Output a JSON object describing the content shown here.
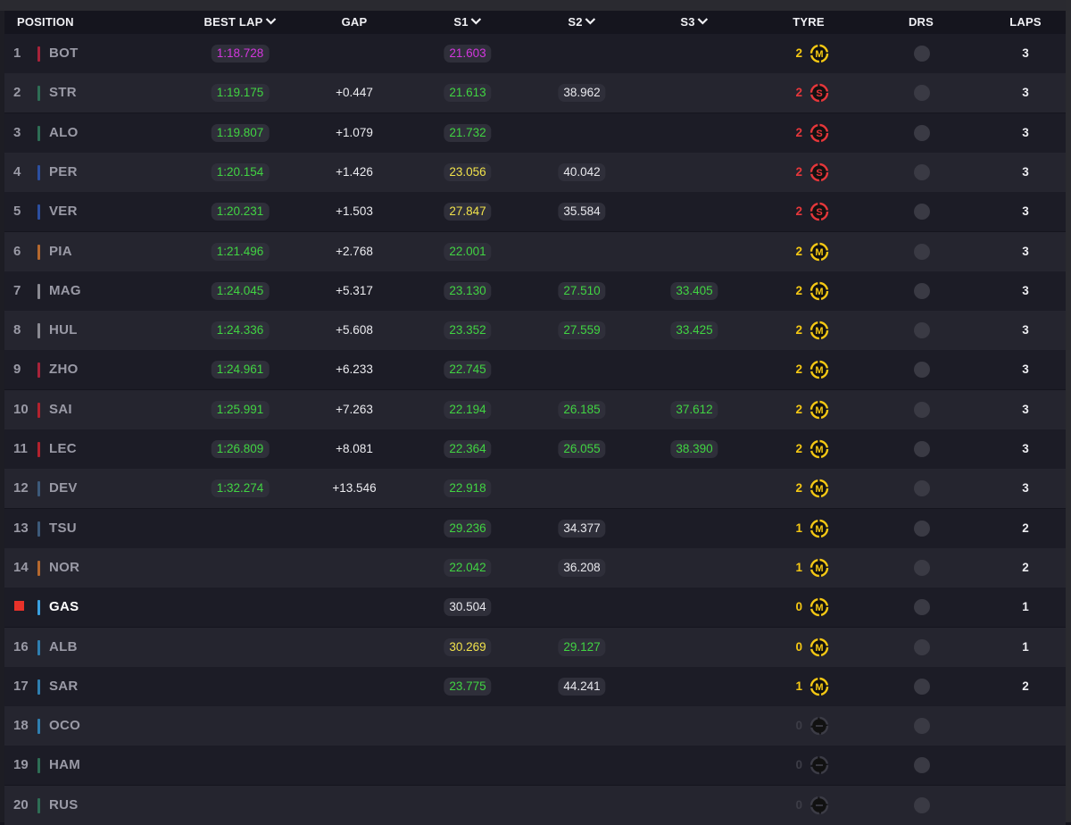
{
  "header": {
    "position": "POSITION",
    "best_lap": "BEST LAP",
    "gap": "GAP",
    "s1": "S1",
    "s2": "S2",
    "s3": "S3",
    "tyre": "TYRE",
    "drs": "DRS",
    "laps": "LAPS"
  },
  "colors": {
    "fastest_overall": "#d337de",
    "personal_best": "#41d442",
    "slower_sector": "#f1e24b",
    "medium_tyre": "#f5c814",
    "soft_tyre": "#e6373b"
  },
  "rows": [
    {
      "pos": "1",
      "driver": "BOT",
      "team_color": "#a8233a",
      "best_lap": "1:18.728",
      "best_lap_style": "purple",
      "gap": "",
      "s1": "21.603",
      "s1_style": "purple",
      "s2": "",
      "s2_style": "",
      "s3": "",
      "s3_style": "",
      "tyre_count": "2",
      "tyre": "medium-tyre-icon",
      "tyre_letter": "M",
      "laps": "3"
    },
    {
      "pos": "2",
      "driver": "STR",
      "team_color": "#2e6e55",
      "best_lap": "1:19.175",
      "best_lap_style": "green",
      "gap": "+0.447",
      "s1": "21.613",
      "s1_style": "green",
      "s2": "38.962",
      "s2_style": "white",
      "s3": "",
      "s3_style": "",
      "tyre_count": "2",
      "tyre": "soft-tyre-icon",
      "tyre_letter": "S",
      "laps": "3"
    },
    {
      "pos": "3",
      "driver": "ALO",
      "team_color": "#2e6e55",
      "best_lap": "1:19.807",
      "best_lap_style": "green",
      "gap": "+1.079",
      "s1": "21.732",
      "s1_style": "green",
      "s2": "",
      "s2_style": "",
      "s3": "",
      "s3_style": "",
      "tyre_count": "2",
      "tyre": "soft-tyre-icon",
      "tyre_letter": "S",
      "laps": "3"
    },
    {
      "pos": "4",
      "driver": "PER",
      "team_color": "#2c4fa0",
      "best_lap": "1:20.154",
      "best_lap_style": "green",
      "gap": "+1.426",
      "s1": "23.056",
      "s1_style": "yellow",
      "s2": "40.042",
      "s2_style": "white",
      "s3": "",
      "s3_style": "",
      "tyre_count": "2",
      "tyre": "soft-tyre-icon",
      "tyre_letter": "S",
      "laps": "3"
    },
    {
      "pos": "5",
      "driver": "VER",
      "team_color": "#2c4fa0",
      "best_lap": "1:20.231",
      "best_lap_style": "green",
      "gap": "+1.503",
      "s1": "27.847",
      "s1_style": "yellow",
      "s2": "35.584",
      "s2_style": "white",
      "s3": "",
      "s3_style": "",
      "tyre_count": "2",
      "tyre": "soft-tyre-icon",
      "tyre_letter": "S",
      "laps": "3"
    },
    {
      "pos": "6",
      "driver": "PIA",
      "team_color": "#b5682e",
      "best_lap": "1:21.496",
      "best_lap_style": "green",
      "gap": "+2.768",
      "s1": "22.001",
      "s1_style": "green",
      "s2": "",
      "s2_style": "",
      "s3": "",
      "s3_style": "",
      "tyre_count": "2",
      "tyre": "medium-tyre-icon",
      "tyre_letter": "M",
      "laps": "3"
    },
    {
      "pos": "7",
      "driver": "MAG",
      "team_color": "#8a8a92",
      "best_lap": "1:24.045",
      "best_lap_style": "green",
      "gap": "+5.317",
      "s1": "23.130",
      "s1_style": "green",
      "s2": "27.510",
      "s2_style": "green",
      "s3": "33.405",
      "s3_style": "green",
      "tyre_count": "2",
      "tyre": "medium-tyre-icon",
      "tyre_letter": "M",
      "laps": "3"
    },
    {
      "pos": "8",
      "driver": "HUL",
      "team_color": "#8a8a92",
      "best_lap": "1:24.336",
      "best_lap_style": "green",
      "gap": "+5.608",
      "s1": "23.352",
      "s1_style": "green",
      "s2": "27.559",
      "s2_style": "green",
      "s3": "33.425",
      "s3_style": "green",
      "tyre_count": "2",
      "tyre": "medium-tyre-icon",
      "tyre_letter": "M",
      "laps": "3"
    },
    {
      "pos": "9",
      "driver": "ZHO",
      "team_color": "#a8233a",
      "best_lap": "1:24.961",
      "best_lap_style": "green",
      "gap": "+6.233",
      "s1": "22.745",
      "s1_style": "green",
      "s2": "",
      "s2_style": "",
      "s3": "",
      "s3_style": "",
      "tyre_count": "2",
      "tyre": "medium-tyre-icon",
      "tyre_letter": "M",
      "laps": "3"
    },
    {
      "pos": "10",
      "driver": "SAI",
      "team_color": "#b3222e",
      "best_lap": "1:25.991",
      "best_lap_style": "green",
      "gap": "+7.263",
      "s1": "22.194",
      "s1_style": "green",
      "s2": "26.185",
      "s2_style": "green",
      "s3": "37.612",
      "s3_style": "green",
      "tyre_count": "2",
      "tyre": "medium-tyre-icon",
      "tyre_letter": "M",
      "laps": "3"
    },
    {
      "pos": "11",
      "driver": "LEC",
      "team_color": "#b3222e",
      "best_lap": "1:26.809",
      "best_lap_style": "green",
      "gap": "+8.081",
      "s1": "22.364",
      "s1_style": "green",
      "s2": "26.055",
      "s2_style": "green",
      "s3": "38.390",
      "s3_style": "green",
      "tyre_count": "2",
      "tyre": "medium-tyre-icon",
      "tyre_letter": "M",
      "laps": "3"
    },
    {
      "pos": "12",
      "driver": "DEV",
      "team_color": "#3d5a7a",
      "best_lap": "1:32.274",
      "best_lap_style": "green",
      "gap": "+13.546",
      "s1": "22.918",
      "s1_style": "green",
      "s2": "",
      "s2_style": "",
      "s3": "",
      "s3_style": "",
      "tyre_count": "2",
      "tyre": "medium-tyre-icon",
      "tyre_letter": "M",
      "laps": "3"
    },
    {
      "pos": "13",
      "driver": "TSU",
      "team_color": "#3d5a7a",
      "best_lap": "",
      "best_lap_style": "",
      "gap": "",
      "s1": "29.236",
      "s1_style": "green",
      "s2": "34.377",
      "s2_style": "white",
      "s3": "",
      "s3_style": "",
      "tyre_count": "1",
      "tyre": "medium-tyre-icon",
      "tyre_letter": "M",
      "laps": "2"
    },
    {
      "pos": "14",
      "driver": "NOR",
      "team_color": "#b5682e",
      "best_lap": "",
      "best_lap_style": "",
      "gap": "",
      "s1": "22.042",
      "s1_style": "green",
      "s2": "36.208",
      "s2_style": "white",
      "s3": "",
      "s3_style": "",
      "tyre_count": "1",
      "tyre": "medium-tyre-icon",
      "tyre_letter": "M",
      "laps": "2"
    },
    {
      "pos": "",
      "driver": "GAS",
      "team_color": "#3aa0e0",
      "retired": true,
      "best_lap": "",
      "best_lap_style": "",
      "gap": "",
      "s1": "30.504",
      "s1_style": "white",
      "s2": "",
      "s2_style": "",
      "s3": "",
      "s3_style": "",
      "tyre_count": "0",
      "tyre": "medium-tyre-icon",
      "tyre_letter": "M",
      "laps": "1"
    },
    {
      "pos": "16",
      "driver": "ALB",
      "team_color": "#2f7fb0",
      "best_lap": "",
      "best_lap_style": "",
      "gap": "",
      "s1": "30.269",
      "s1_style": "yellow",
      "s2": "29.127",
      "s2_style": "green",
      "s3": "",
      "s3_style": "",
      "tyre_count": "0",
      "tyre": "medium-tyre-icon",
      "tyre_letter": "M",
      "laps": "1"
    },
    {
      "pos": "17",
      "driver": "SAR",
      "team_color": "#2f7fb0",
      "best_lap": "",
      "best_lap_style": "",
      "gap": "",
      "s1": "23.775",
      "s1_style": "green",
      "s2": "44.241",
      "s2_style": "white",
      "s3": "",
      "s3_style": "",
      "tyre_count": "1",
      "tyre": "medium-tyre-icon",
      "tyre_letter": "M",
      "laps": "2"
    },
    {
      "pos": "18",
      "driver": "OCO",
      "team_color": "#2f7fb0",
      "best_lap": "",
      "best_lap_style": "",
      "gap": "",
      "s1": "",
      "s1_style": "",
      "s2": "",
      "s2_style": "",
      "s3": "",
      "s3_style": "",
      "tyre_count": "0",
      "tyre": "unknown-tyre-icon",
      "tyre_letter": "-",
      "laps": ""
    },
    {
      "pos": "19",
      "driver": "HAM",
      "team_color": "#2e6e55",
      "best_lap": "",
      "best_lap_style": "",
      "gap": "",
      "s1": "",
      "s1_style": "",
      "s2": "",
      "s2_style": "",
      "s3": "",
      "s3_style": "",
      "tyre_count": "0",
      "tyre": "unknown-tyre-icon",
      "tyre_letter": "-",
      "laps": ""
    },
    {
      "pos": "20",
      "driver": "RUS",
      "team_color": "#2e6e55",
      "best_lap": "",
      "best_lap_style": "",
      "gap": "",
      "s1": "",
      "s1_style": "",
      "s2": "",
      "s2_style": "",
      "s3": "",
      "s3_style": "",
      "tyre_count": "0",
      "tyre": "unknown-tyre-icon",
      "tyre_letter": "-",
      "laps": ""
    }
  ]
}
